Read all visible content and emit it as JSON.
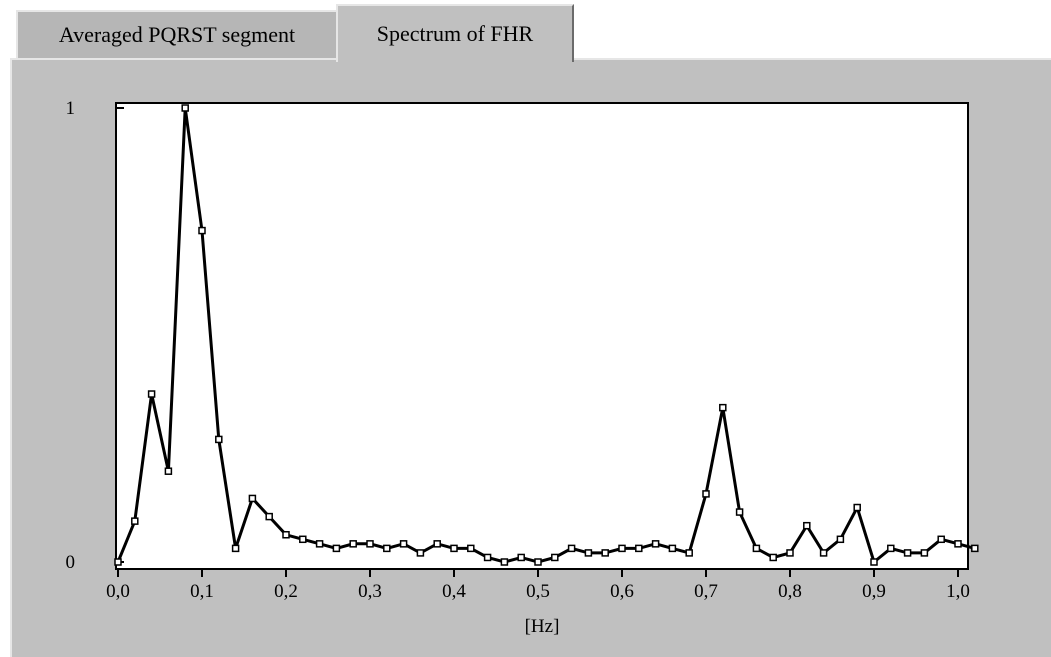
{
  "tabs": [
    {
      "label": "Averaged PQRST segment",
      "active": false
    },
    {
      "label": "Spectrum of FHR",
      "active": true
    }
  ],
  "chart_data": {
    "type": "line",
    "title": "",
    "xlabel": "[Hz]",
    "ylabel": "",
    "xlim": [
      0.0,
      1.02
    ],
    "ylim": [
      0,
      1
    ],
    "x_ticks": [
      {
        "value": 0.0,
        "label": "0,0"
      },
      {
        "value": 0.1,
        "label": "0,1"
      },
      {
        "value": 0.2,
        "label": "0,2"
      },
      {
        "value": 0.3,
        "label": "0,3"
      },
      {
        "value": 0.4,
        "label": "0,4"
      },
      {
        "value": 0.5,
        "label": "0,5"
      },
      {
        "value": 0.6,
        "label": "0,6"
      },
      {
        "value": 0.7,
        "label": "0,7"
      },
      {
        "value": 0.8,
        "label": "0,8"
      },
      {
        "value": 0.9,
        "label": "0,9"
      },
      {
        "value": 1.0,
        "label": "1,0"
      }
    ],
    "y_ticks": [
      {
        "value": 0,
        "label": "0"
      },
      {
        "value": 1,
        "label": "1"
      }
    ],
    "grid": false,
    "line_color": "#000000",
    "series": [
      {
        "x": [
          0.0,
          0.02,
          0.04,
          0.06,
          0.08,
          0.1,
          0.12,
          0.14,
          0.16,
          0.18,
          0.2,
          0.22,
          0.24,
          0.26,
          0.28,
          0.3,
          0.32,
          0.34,
          0.36,
          0.38,
          0.4,
          0.42,
          0.44,
          0.46,
          0.48,
          0.5,
          0.52,
          0.54,
          0.56,
          0.58,
          0.6,
          0.62,
          0.64,
          0.66,
          0.68,
          0.7,
          0.72,
          0.74,
          0.76,
          0.78,
          0.8,
          0.82,
          0.84,
          0.86,
          0.88,
          0.9,
          0.92,
          0.94,
          0.96,
          0.98,
          1.0,
          1.02
        ],
        "y": [
          0.0,
          0.09,
          0.37,
          0.2,
          1.0,
          0.73,
          0.27,
          0.03,
          0.14,
          0.1,
          0.06,
          0.05,
          0.04,
          0.03,
          0.04,
          0.04,
          0.03,
          0.04,
          0.02,
          0.04,
          0.03,
          0.03,
          0.01,
          0.0,
          0.01,
          0.0,
          0.01,
          0.03,
          0.02,
          0.02,
          0.03,
          0.03,
          0.04,
          0.03,
          0.02,
          0.15,
          0.34,
          0.11,
          0.03,
          0.01,
          0.02,
          0.08,
          0.02,
          0.05,
          0.12,
          0.0,
          0.03,
          0.02,
          0.02,
          0.05,
          0.04,
          0.03
        ]
      }
    ]
  }
}
